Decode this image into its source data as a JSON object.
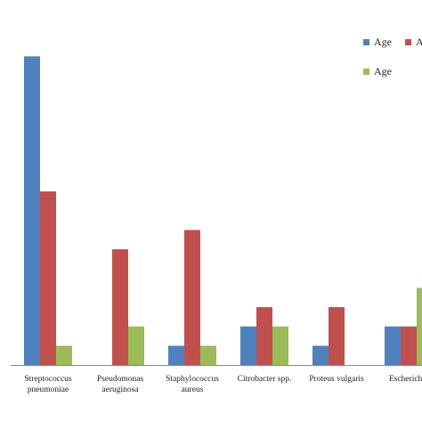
{
  "chart_data": {
    "type": "bar",
    "categories": [
      [
        "Streptococcus",
        "pneumoniae"
      ],
      [
        "Pseudomonas",
        "aeruginosa"
      ],
      [
        "Staphylococcus",
        "aureus"
      ],
      [
        "Citrobacter spp."
      ],
      [
        "Proteus vulgaris"
      ],
      [
        "Escherichia"
      ]
    ],
    "series": [
      {
        "name": "Age",
        "color": "#4f81bd",
        "values": [
          16,
          0,
          1,
          2,
          1,
          2
        ]
      },
      {
        "name": "A",
        "color": "#c0504d",
        "values": [
          9,
          6,
          7,
          3,
          3,
          2
        ]
      },
      {
        "name": "Age",
        "color": "#9bbb59",
        "values": [
          1,
          2,
          1,
          2,
          0,
          4
        ]
      }
    ],
    "ylim": [
      0,
      18
    ],
    "grid": false,
    "legend_position": "top-right"
  }
}
